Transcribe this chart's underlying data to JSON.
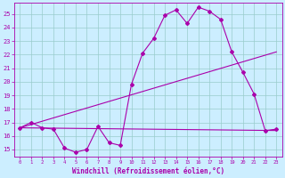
{
  "background_color": "#cceeff",
  "grid_color": "#99cccc",
  "line_color": "#aa00aa",
  "xlim": [
    -0.5,
    23.5
  ],
  "ylim": [
    14.5,
    25.8
  ],
  "xlabel": "Windchill (Refroidissement éolien,°C)",
  "xlabel_fontsize": 5.5,
  "yticks": [
    15,
    16,
    17,
    18,
    19,
    20,
    21,
    22,
    23,
    24,
    25
  ],
  "xticks": [
    0,
    1,
    2,
    3,
    4,
    5,
    6,
    7,
    8,
    9,
    10,
    11,
    12,
    13,
    14,
    15,
    16,
    17,
    18,
    19,
    20,
    21,
    22,
    23
  ],
  "curve1_x": [
    0,
    1,
    2,
    3,
    4,
    5,
    6,
    7,
    8,
    9,
    10,
    11,
    12,
    13,
    14,
    15,
    16,
    17,
    18,
    19,
    20,
    21,
    22,
    23
  ],
  "curve1_y": [
    16.6,
    17.0,
    16.6,
    16.5,
    15.1,
    14.8,
    15.0,
    16.7,
    15.5,
    15.3,
    19.8,
    22.1,
    23.2,
    24.9,
    25.3,
    24.3,
    25.5,
    25.2,
    24.6,
    22.2,
    20.7,
    19.1,
    16.4,
    16.5
  ],
  "curve2_x": [
    0,
    23
  ],
  "curve2_y": [
    16.6,
    22.2
  ],
  "curve3_x": [
    0,
    23
  ],
  "curve3_y": [
    16.6,
    16.4
  ],
  "markersize": 2.0,
  "linewidth": 0.8,
  "tick_fontsize": 5.0,
  "spine_color": "#666699"
}
